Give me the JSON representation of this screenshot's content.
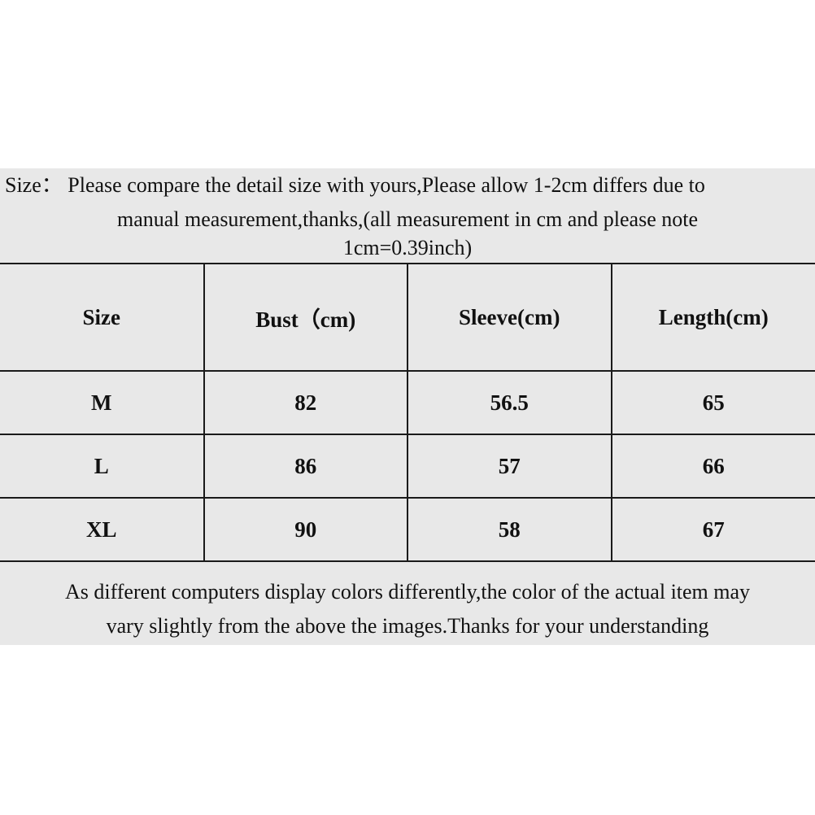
{
  "notice": {
    "label": "Size：",
    "line1": "Please compare the detail size with yours,Please allow 1-2cm differs due to",
    "line2": "manual measurement,thanks,(all measurement in cm and please note",
    "line3": "1cm=0.39inch)"
  },
  "table": {
    "headers": [
      "Size",
      "Bust（cm)",
      "Sleeve(cm)",
      "Length(cm)"
    ],
    "rows": [
      [
        "M",
        "82",
        "56.5",
        "65"
      ],
      [
        "L",
        "86",
        "57",
        "66"
      ],
      [
        "XL",
        "90",
        "58",
        "67"
      ]
    ]
  },
  "footer": {
    "line1": "As different computers display colors differently,the color of the actual item may",
    "line2": "vary slightly from the above the images.Thanks for your understanding"
  }
}
